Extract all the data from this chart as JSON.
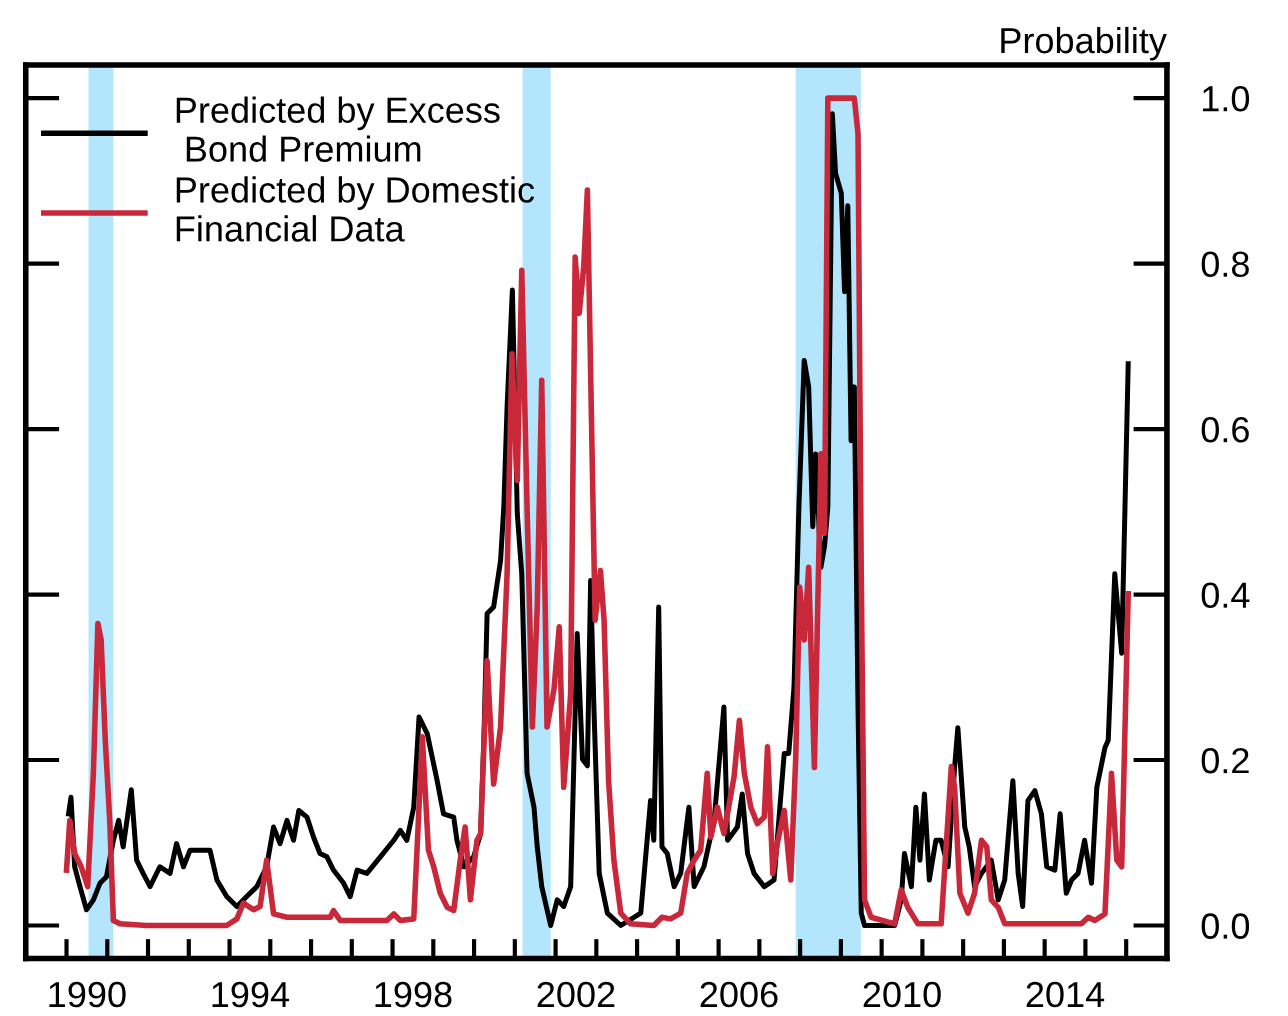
{
  "chart_data": {
    "type": "line",
    "ylabel": "Probability",
    "xlim": [
      1989,
      2017
    ],
    "ylim": [
      -0.04,
      1.04
    ],
    "xticks": [
      {
        "value": 1990,
        "label": null
      },
      {
        "value": 1991,
        "label": null
      },
      {
        "value": 1992,
        "label": null
      },
      {
        "value": 1993,
        "label": null
      },
      {
        "value": 1994,
        "label": null
      },
      {
        "value": 1995,
        "label": null
      },
      {
        "value": 1996,
        "label": null
      },
      {
        "value": 1997,
        "label": null
      },
      {
        "value": 1998,
        "label": null
      },
      {
        "value": 1999,
        "label": null
      },
      {
        "value": 2000,
        "label": null
      },
      {
        "value": 2001,
        "label": null
      },
      {
        "value": 2002,
        "label": null
      },
      {
        "value": 2003,
        "label": null
      },
      {
        "value": 2004,
        "label": null
      },
      {
        "value": 2005,
        "label": null
      },
      {
        "value": 2006,
        "label": null
      },
      {
        "value": 2007,
        "label": null
      },
      {
        "value": 2008,
        "label": null
      },
      {
        "value": 2009,
        "label": null
      },
      {
        "value": 2010,
        "label": null
      },
      {
        "value": 2011,
        "label": null
      },
      {
        "value": 2012,
        "label": null
      },
      {
        "value": 2013,
        "label": null
      },
      {
        "value": 2014,
        "label": null
      },
      {
        "value": 2015,
        "label": null
      },
      {
        "value": 2016,
        "label": null
      },
      {
        "value": 1990.5,
        "label": "1990"
      },
      {
        "value": 1994.5,
        "label": "1994"
      },
      {
        "value": 1998.5,
        "label": "1998"
      },
      {
        "value": 2002.5,
        "label": "2002"
      },
      {
        "value": 2006.5,
        "label": "2006"
      },
      {
        "value": 2010.5,
        "label": "2010"
      },
      {
        "value": 2014.5,
        "label": "2014"
      }
    ],
    "yticks": [
      {
        "value": 0,
        "label": "0.0"
      },
      {
        "value": 0.2,
        "label": "0.2"
      },
      {
        "value": 0.4,
        "label": "0.4"
      },
      {
        "value": 0.6,
        "label": "0.6"
      },
      {
        "value": 0.8,
        "label": "0.8"
      },
      {
        "value": 1.0,
        "label": "1.0"
      }
    ],
    "grid": false,
    "legend": "top left",
    "line_style": "solid",
    "bands": [
      {
        "axis": "x",
        "from": 1990.54,
        "to": 1991.15,
        "color": "#b3e5fc"
      },
      {
        "axis": "x",
        "from": 2001.19,
        "to": 2001.88,
        "color": "#b3e5fc"
      },
      {
        "axis": "x",
        "from": 2007.89,
        "to": 2009.49,
        "color": "#b3e5fc"
      }
    ],
    "series": [
      {
        "name": "Predicted by Excess\n Bond Premium",
        "color": "#000000",
        "x": [
          1990.05,
          1990.11,
          1990.2,
          1990.33,
          1990.49,
          1990.66,
          1990.82,
          1990.98,
          1991.15,
          1991.28,
          1991.39,
          1991.59,
          1991.72,
          1991.88,
          1992.05,
          1992.29,
          1992.54,
          1992.7,
          1992.87,
          1993.03,
          1993.28,
          1993.52,
          1993.69,
          1993.93,
          1994.18,
          1994.42,
          1994.67,
          1994.91,
          1995.08,
          1995.24,
          1995.41,
          1995.57,
          1995.7,
          1995.9,
          1996.06,
          1996.22,
          1996.39,
          1996.55,
          1996.8,
          1996.96,
          1997.13,
          1997.37,
          1997.7,
          1998.03,
          1998.19,
          1998.35,
          1998.52,
          1998.65,
          1998.85,
          1999.09,
          1999.25,
          1999.5,
          1999.58,
          1999.75,
          1999.99,
          2000.16,
          2000.24,
          2000.32,
          2000.48,
          2000.65,
          2000.73,
          2000.81,
          2000.94,
          2001.06,
          2001.17,
          2001.3,
          2001.47,
          2001.55,
          2001.66,
          2001.88,
          2002.04,
          2002.2,
          2002.37,
          2002.53,
          2002.66,
          2002.78,
          2002.86,
          2002.94,
          2003.07,
          2003.27,
          2003.6,
          2004.09,
          2004.33,
          2004.41,
          2004.53,
          2004.61,
          2004.74,
          2004.91,
          2005.07,
          2005.27,
          2005.4,
          2005.64,
          2005.89,
          2006.13,
          2006.22,
          2006.46,
          2006.58,
          2006.71,
          2006.87,
          2007.12,
          2007.36,
          2007.61,
          2007.72,
          2007.85,
          2007.97,
          2008.1,
          2008.21,
          2008.31,
          2008.38,
          2008.51,
          2008.6,
          2008.68,
          2008.79,
          2008.87,
          2009.01,
          2009.09,
          2009.17,
          2009.25,
          2009.33,
          2009.42,
          2009.5,
          2009.58,
          2010.32,
          2010.48,
          2010.56,
          2010.73,
          2010.84,
          2010.94,
          2011.05,
          2011.17,
          2011.33,
          2011.46,
          2011.63,
          2011.79,
          2011.87,
          2012.04,
          2012.15,
          2012.28,
          2012.45,
          2012.69,
          2012.86,
          2013.02,
          2013.22,
          2013.35,
          2013.46,
          2013.59,
          2013.76,
          2013.92,
          2014.05,
          2014.25,
          2014.38,
          2014.53,
          2014.66,
          2014.82,
          2014.98,
          2015.15,
          2015.28,
          2015.48,
          2015.56,
          2015.72,
          2015.89,
          2016.05
        ],
        "values": [
          0.135,
          0.155,
          0.071,
          0.047,
          0.019,
          0.031,
          0.051,
          0.059,
          0.103,
          0.127,
          0.095,
          0.164,
          0.079,
          0.063,
          0.047,
          0.071,
          0.063,
          0.099,
          0.071,
          0.091,
          0.091,
          0.091,
          0.055,
          0.035,
          0.023,
          0.035,
          0.047,
          0.071,
          0.119,
          0.099,
          0.127,
          0.103,
          0.139,
          0.131,
          0.107,
          0.087,
          0.083,
          0.067,
          0.051,
          0.035,
          0.067,
          0.063,
          0.083,
          0.103,
          0.115,
          0.103,
          0.143,
          0.252,
          0.232,
          0.176,
          0.135,
          0.131,
          0.103,
          0.071,
          0.083,
          0.111,
          0.224,
          0.377,
          0.385,
          0.441,
          0.506,
          0.627,
          0.768,
          0.498,
          0.425,
          0.184,
          0.143,
          0.095,
          0.047,
          0.0,
          0.031,
          0.023,
          0.047,
          0.353,
          0.201,
          0.193,
          0.417,
          0.264,
          0.063,
          0.015,
          0.0,
          0.015,
          0.151,
          0.103,
          0.385,
          0.095,
          0.087,
          0.047,
          0.063,
          0.143,
          0.047,
          0.071,
          0.127,
          0.264,
          0.103,
          0.119,
          0.159,
          0.087,
          0.063,
          0.047,
          0.055,
          0.208,
          0.208,
          0.288,
          0.506,
          0.683,
          0.651,
          0.482,
          0.57,
          0.433,
          0.459,
          0.506,
          0.981,
          0.909,
          0.885,
          0.766,
          0.87,
          0.586,
          0.651,
          0.264,
          0.015,
          0.0,
          0.0,
          0.031,
          0.087,
          0.047,
          0.143,
          0.079,
          0.159,
          0.055,
          0.103,
          0.103,
          0.071,
          0.191,
          0.239,
          0.119,
          0.095,
          0.047,
          0.063,
          0.079,
          0.031,
          0.055,
          0.175,
          0.063,
          0.023,
          0.151,
          0.163,
          0.135,
          0.071,
          0.067,
          0.135,
          0.039,
          0.055,
          0.063,
          0.103,
          0.051,
          0.167,
          0.215,
          0.224,
          0.425,
          0.329,
          0.679
        ]
      },
      {
        "name": "Predicted by Domestic\nFinancial Data",
        "color": "#c8283a",
        "x": [
          1990.0,
          1990.08,
          1990.2,
          1990.36,
          1990.52,
          1990.66,
          1990.77,
          1990.85,
          1990.95,
          1991.06,
          1991.15,
          1991.31,
          1991.97,
          1993.93,
          1994.18,
          1994.34,
          1994.59,
          1994.75,
          1994.91,
          1995.08,
          1995.41,
          1996.47,
          1996.55,
          1996.72,
          1997.86,
          1998.03,
          1998.19,
          1998.52,
          1998.73,
          1998.88,
          1999.01,
          1999.17,
          1999.34,
          1999.5,
          1999.66,
          1999.78,
          1999.91,
          2000.07,
          2000.16,
          2000.32,
          2000.48,
          2000.65,
          2000.81,
          2000.93,
          2001.06,
          2001.17,
          2001.3,
          2001.43,
          2001.55,
          2001.66,
          2001.79,
          2001.96,
          2002.09,
          2002.2,
          2002.37,
          2002.48,
          2002.58,
          2002.69,
          2002.78,
          2002.86,
          2002.97,
          2003.1,
          2003.19,
          2003.3,
          2003.43,
          2003.6,
          2003.84,
          2004.41,
          2004.61,
          2004.82,
          2005.07,
          2005.23,
          2005.4,
          2005.56,
          2005.72,
          2005.81,
          2005.97,
          2006.13,
          2006.38,
          2006.51,
          2006.63,
          2006.79,
          2006.95,
          2007.12,
          2007.2,
          2007.33,
          2007.44,
          2007.61,
          2007.77,
          2007.89,
          2007.99,
          2008.1,
          2008.21,
          2008.35,
          2008.51,
          2008.6,
          2008.68,
          2009.33,
          2009.42,
          2009.5,
          2009.58,
          2009.74,
          2010.32,
          2010.48,
          2010.64,
          2010.89,
          2011.46,
          2011.71,
          2011.79,
          2011.92,
          2012.12,
          2012.28,
          2012.45,
          2012.58,
          2012.69,
          2012.86,
          2013.02,
          2014.9,
          2015.07,
          2015.23,
          2015.48,
          2015.64,
          2015.77,
          2015.89,
          2016.05
        ],
        "values": [
          0.067,
          0.127,
          0.087,
          0.071,
          0.047,
          0.185,
          0.365,
          0.345,
          0.225,
          0.127,
          0.006,
          0.002,
          0.0,
          0.0,
          0.008,
          0.027,
          0.019,
          0.023,
          0.079,
          0.014,
          0.01,
          0.01,
          0.018,
          0.006,
          0.006,
          0.014,
          0.006,
          0.008,
          0.228,
          0.091,
          0.071,
          0.039,
          0.022,
          0.018,
          0.079,
          0.119,
          0.031,
          0.103,
          0.111,
          0.32,
          0.171,
          0.24,
          0.425,
          0.691,
          0.538,
          0.792,
          0.506,
          0.24,
          0.385,
          0.659,
          0.24,
          0.285,
          0.361,
          0.167,
          0.28,
          0.808,
          0.74,
          0.796,
          0.889,
          0.667,
          0.369,
          0.429,
          0.369,
          0.175,
          0.079,
          0.015,
          0.002,
          0.0,
          0.01,
          0.008,
          0.015,
          0.063,
          0.079,
          0.091,
          0.184,
          0.107,
          0.143,
          0.111,
          0.18,
          0.248,
          0.184,
          0.143,
          0.123,
          0.131,
          0.216,
          0.063,
          0.099,
          0.139,
          0.055,
          0.2,
          0.409,
          0.345,
          0.433,
          0.191,
          0.57,
          0.474,
          1.0,
          1.0,
          0.957,
          0.425,
          0.031,
          0.01,
          0.002,
          0.043,
          0.022,
          0.002,
          0.002,
          0.192,
          0.167,
          0.039,
          0.015,
          0.039,
          0.103,
          0.095,
          0.031,
          0.022,
          0.002,
          0.002,
          0.01,
          0.006,
          0.014,
          0.184,
          0.079,
          0.071,
          0.401
        ]
      }
    ]
  }
}
